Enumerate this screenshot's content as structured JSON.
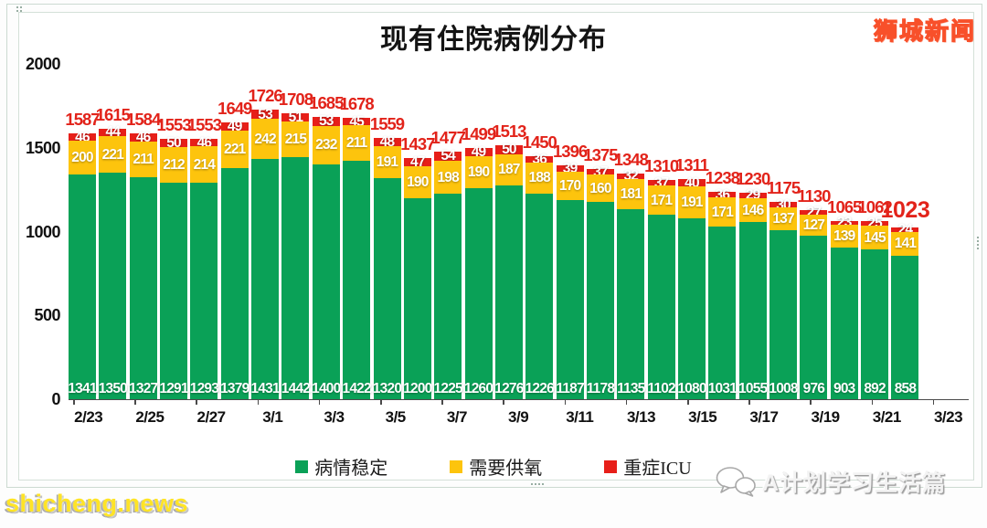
{
  "branding": {
    "site_logo": "狮城新闻",
    "watermark_left": "shicheng.news",
    "watermark_right": "A计划学习生活篇",
    "watermark_right_icon": "wechat-icon"
  },
  "chart_data": {
    "type": "bar",
    "stacked": true,
    "title": "现有住院病例分布",
    "bars": 28,
    "ylim": [
      0,
      2000
    ],
    "y_ticks": [
      2000,
      1500,
      1000,
      500,
      0
    ],
    "x_tick_labels": [
      "2/23",
      "2/25",
      "2/27",
      "3/1",
      "3/3",
      "3/5",
      "3/7",
      "3/9",
      "3/11",
      "3/13",
      "3/15",
      "3/17",
      "3/19",
      "3/21",
      "3/23"
    ],
    "grid": false,
    "legend_position": "bottom",
    "series": [
      {
        "name": "病情稳定",
        "color": "#0aa157",
        "values": [
          1341,
          1350,
          1327,
          1291,
          1293,
          1379,
          1431,
          1442,
          1400,
          1422,
          1320,
          1200,
          1225,
          1260,
          1276,
          1226,
          1187,
          1178,
          1135,
          1102,
          1080,
          1031,
          1055,
          1008,
          976,
          903,
          892,
          858
        ]
      },
      {
        "name": "需要供氧",
        "color": "#fdc40d",
        "values": [
          200,
          221,
          211,
          212,
          214,
          221,
          242,
          215,
          232,
          211,
          191,
          190,
          198,
          190,
          187,
          188,
          170,
          160,
          181,
          171,
          191,
          171,
          146,
          137,
          127,
          139,
          145,
          141
        ]
      },
      {
        "name": "重症ICU",
        "color": "#e71f19",
        "values": [
          46,
          44,
          46,
          50,
          46,
          49,
          53,
          51,
          53,
          45,
          48,
          47,
          54,
          49,
          50,
          36,
          39,
          37,
          32,
          37,
          40,
          36,
          29,
          30,
          27,
          23,
          25,
          24
        ]
      }
    ],
    "totals": [
      1587,
      1615,
      1584,
      1553,
      1553,
      1649,
      1726,
      1708,
      1685,
      1678,
      1559,
      1437,
      1477,
      1499,
      1513,
      1450,
      1396,
      1375,
      1348,
      1310,
      1311,
      1238,
      1230,
      1175,
      1130,
      1065,
      1062,
      1023
    ],
    "totals_color": "#e2231a",
    "segment_label_color": "#ffffff"
  }
}
